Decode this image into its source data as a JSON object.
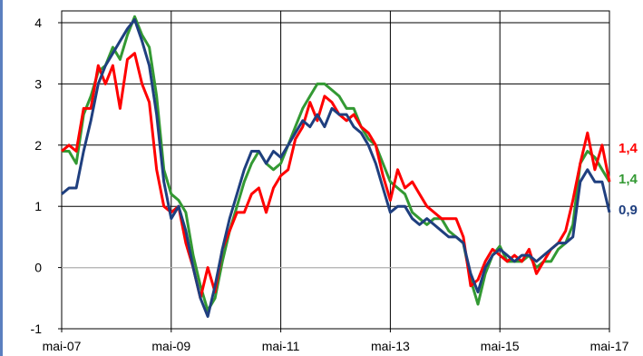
{
  "colors": {
    "frame_bar": "#5b7fbf",
    "grid": "#000000",
    "background": "#ffffff"
  },
  "chart_data": {
    "type": "line",
    "title": "",
    "xlabel": "",
    "ylabel": "",
    "ylim": [
      -1,
      4.2
    ],
    "y_ticks": [
      -1,
      0,
      1,
      2,
      3,
      4
    ],
    "y_tick_labels": [
      "-1",
      "0",
      "1",
      "2",
      "3",
      "4"
    ],
    "x_tick_labels": [
      "mai-07",
      "mai-09",
      "mai-11",
      "mai-13",
      "mai-15",
      "mai-17"
    ],
    "x_range_months": [
      0,
      120
    ],
    "grid": "horizontal and vertical",
    "legend": "none; series end values printed at right edge",
    "end_labels": [
      {
        "text": "1,4",
        "color": "#ff0000"
      },
      {
        "text": "1,4",
        "color": "#339933"
      },
      {
        "text": "0,9",
        "color": "#1f3f7f"
      }
    ],
    "series": [
      {
        "color": "#339933",
        "points": [
          [
            0,
            1.9
          ],
          [
            2,
            1.9
          ],
          [
            4,
            1.7
          ],
          [
            6,
            2.5
          ],
          [
            8,
            2.8
          ],
          [
            10,
            3.2
          ],
          [
            12,
            3.3
          ],
          [
            14,
            3.6
          ],
          [
            16,
            3.4
          ],
          [
            18,
            3.8
          ],
          [
            20,
            4.1
          ],
          [
            22,
            3.8
          ],
          [
            24,
            3.6
          ],
          [
            26,
            2.8
          ],
          [
            28,
            1.6
          ],
          [
            30,
            1.2
          ],
          [
            32,
            1.1
          ],
          [
            34,
            0.9
          ],
          [
            36,
            0.2
          ],
          [
            38,
            -0.3
          ],
          [
            40,
            -0.7
          ],
          [
            42,
            -0.5
          ],
          [
            44,
            0.1
          ],
          [
            46,
            0.6
          ],
          [
            48,
            1.0
          ],
          [
            50,
            1.4
          ],
          [
            52,
            1.7
          ],
          [
            54,
            1.9
          ],
          [
            56,
            1.7
          ],
          [
            58,
            1.6
          ],
          [
            60,
            1.7
          ],
          [
            62,
            2.0
          ],
          [
            64,
            2.3
          ],
          [
            66,
            2.6
          ],
          [
            68,
            2.8
          ],
          [
            70,
            3.0
          ],
          [
            72,
            3.0
          ],
          [
            74,
            2.9
          ],
          [
            76,
            2.8
          ],
          [
            78,
            2.6
          ],
          [
            80,
            2.6
          ],
          [
            82,
            2.3
          ],
          [
            84,
            2.1
          ],
          [
            86,
            2.0
          ],
          [
            88,
            1.7
          ],
          [
            90,
            1.4
          ],
          [
            92,
            1.3
          ],
          [
            94,
            1.2
          ],
          [
            96,
            0.9
          ],
          [
            98,
            0.8
          ],
          [
            100,
            0.7
          ],
          [
            102,
            0.8
          ],
          [
            104,
            0.8
          ],
          [
            106,
            0.6
          ],
          [
            108,
            0.5
          ],
          [
            110,
            0.4
          ],
          [
            112,
            -0.2
          ],
          [
            114,
            -0.6
          ],
          [
            116,
            -0.1
          ],
          [
            118,
            0.2
          ],
          [
            120,
            0.35
          ],
          [
            122,
            0.1
          ],
          [
            124,
            0.1
          ],
          [
            126,
            0.1
          ],
          [
            128,
            0.2
          ],
          [
            130,
            0.0
          ],
          [
            132,
            0.1
          ],
          [
            134,
            0.1
          ],
          [
            136,
            0.3
          ],
          [
            138,
            0.4
          ],
          [
            140,
            0.7
          ],
          [
            142,
            1.7
          ],
          [
            144,
            1.9
          ],
          [
            146,
            1.8
          ],
          [
            148,
            1.6
          ],
          [
            150,
            1.4
          ]
        ]
      },
      {
        "color": "#ff0000",
        "points": [
          [
            0,
            1.9
          ],
          [
            2,
            2.0
          ],
          [
            4,
            1.9
          ],
          [
            6,
            2.6
          ],
          [
            8,
            2.6
          ],
          [
            10,
            3.3
          ],
          [
            12,
            3.0
          ],
          [
            14,
            3.3
          ],
          [
            16,
            2.6
          ],
          [
            18,
            3.4
          ],
          [
            20,
            3.5
          ],
          [
            22,
            3.0
          ],
          [
            24,
            2.7
          ],
          [
            26,
            1.6
          ],
          [
            28,
            1.0
          ],
          [
            30,
            0.9
          ],
          [
            32,
            1.0
          ],
          [
            34,
            0.4
          ],
          [
            36,
            0.0
          ],
          [
            38,
            -0.5
          ],
          [
            40,
            0.0
          ],
          [
            42,
            -0.4
          ],
          [
            44,
            0.3
          ],
          [
            46,
            0.6
          ],
          [
            48,
            0.9
          ],
          [
            50,
            0.9
          ],
          [
            52,
            1.2
          ],
          [
            54,
            1.3
          ],
          [
            56,
            0.9
          ],
          [
            58,
            1.3
          ],
          [
            60,
            1.5
          ],
          [
            62,
            1.6
          ],
          [
            64,
            2.1
          ],
          [
            66,
            2.3
          ],
          [
            68,
            2.7
          ],
          [
            70,
            2.4
          ],
          [
            72,
            2.8
          ],
          [
            74,
            2.7
          ],
          [
            76,
            2.5
          ],
          [
            78,
            2.4
          ],
          [
            80,
            2.5
          ],
          [
            82,
            2.3
          ],
          [
            84,
            2.2
          ],
          [
            86,
            2.0
          ],
          [
            88,
            1.5
          ],
          [
            90,
            1.1
          ],
          [
            92,
            1.6
          ],
          [
            94,
            1.3
          ],
          [
            96,
            1.4
          ],
          [
            98,
            1.2
          ],
          [
            100,
            1.0
          ],
          [
            102,
            0.9
          ],
          [
            104,
            0.8
          ],
          [
            106,
            0.8
          ],
          [
            108,
            0.8
          ],
          [
            110,
            0.5
          ],
          [
            112,
            -0.3
          ],
          [
            114,
            -0.2
          ],
          [
            116,
            0.1
          ],
          [
            118,
            0.3
          ],
          [
            120,
            0.2
          ],
          [
            122,
            0.1
          ],
          [
            124,
            0.2
          ],
          [
            126,
            0.1
          ],
          [
            128,
            0.3
          ],
          [
            130,
            -0.1
          ],
          [
            132,
            0.1
          ],
          [
            134,
            0.3
          ],
          [
            136,
            0.4
          ],
          [
            138,
            0.6
          ],
          [
            140,
            1.1
          ],
          [
            142,
            1.7
          ],
          [
            144,
            2.2
          ],
          [
            146,
            1.6
          ],
          [
            148,
            2.0
          ],
          [
            150,
            1.4
          ]
        ]
      },
      {
        "color": "#1f3f7f",
        "points": [
          [
            0,
            1.2
          ],
          [
            2,
            1.3
          ],
          [
            4,
            1.3
          ],
          [
            6,
            1.9
          ],
          [
            8,
            2.4
          ],
          [
            10,
            3.0
          ],
          [
            12,
            3.3
          ],
          [
            14,
            3.5
          ],
          [
            16,
            3.7
          ],
          [
            18,
            3.9
          ],
          [
            20,
            4.05
          ],
          [
            22,
            3.7
          ],
          [
            24,
            3.3
          ],
          [
            26,
            2.5
          ],
          [
            28,
            1.4
          ],
          [
            30,
            0.8
          ],
          [
            32,
            1.0
          ],
          [
            34,
            0.6
          ],
          [
            36,
            0.0
          ],
          [
            38,
            -0.5
          ],
          [
            40,
            -0.8
          ],
          [
            42,
            -0.3
          ],
          [
            44,
            0.3
          ],
          [
            46,
            0.8
          ],
          [
            48,
            1.2
          ],
          [
            50,
            1.6
          ],
          [
            52,
            1.9
          ],
          [
            54,
            1.9
          ],
          [
            56,
            1.7
          ],
          [
            58,
            1.9
          ],
          [
            60,
            1.8
          ],
          [
            62,
            2.0
          ],
          [
            64,
            2.2
          ],
          [
            66,
            2.4
          ],
          [
            68,
            2.3
          ],
          [
            70,
            2.5
          ],
          [
            72,
            2.3
          ],
          [
            74,
            2.6
          ],
          [
            76,
            2.5
          ],
          [
            78,
            2.5
          ],
          [
            80,
            2.3
          ],
          [
            82,
            2.2
          ],
          [
            84,
            2.0
          ],
          [
            86,
            1.7
          ],
          [
            88,
            1.3
          ],
          [
            90,
            0.9
          ],
          [
            92,
            1.0
          ],
          [
            94,
            1.0
          ],
          [
            96,
            0.8
          ],
          [
            98,
            0.7
          ],
          [
            100,
            0.8
          ],
          [
            102,
            0.7
          ],
          [
            104,
            0.6
          ],
          [
            106,
            0.5
          ],
          [
            108,
            0.5
          ],
          [
            110,
            0.4
          ],
          [
            112,
            -0.1
          ],
          [
            114,
            -0.4
          ],
          [
            116,
            0.0
          ],
          [
            118,
            0.2
          ],
          [
            120,
            0.3
          ],
          [
            122,
            0.2
          ],
          [
            124,
            0.1
          ],
          [
            126,
            0.2
          ],
          [
            128,
            0.2
          ],
          [
            130,
            0.1
          ],
          [
            132,
            0.2
          ],
          [
            134,
            0.3
          ],
          [
            136,
            0.4
          ],
          [
            138,
            0.4
          ],
          [
            140,
            0.5
          ],
          [
            142,
            1.4
          ],
          [
            144,
            1.6
          ],
          [
            146,
            1.4
          ],
          [
            148,
            1.4
          ],
          [
            150,
            0.9
          ]
        ]
      }
    ]
  }
}
